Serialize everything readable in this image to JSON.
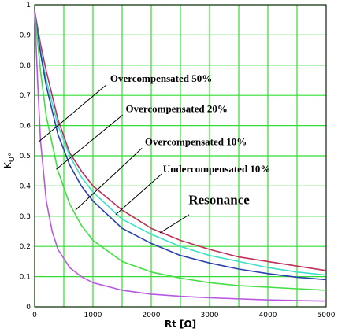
{
  "chart_data": {
    "type": "line",
    "title": "",
    "xlabel": "Rt [Ω]",
    "ylabel": "K",
    "ylabel_sub": "U°",
    "xlim": [
      0,
      5000
    ],
    "ylim": [
      0,
      1
    ],
    "grid": true,
    "x_ticks": [
      "0",
      "1000",
      "2000",
      "3000",
      "4000",
      "5000"
    ],
    "y_ticks": [
      "0",
      "0.1",
      "0.2",
      "0.3",
      "0.4",
      "0.5",
      "0.6",
      "0.7",
      "0.8",
      "0.9",
      "1"
    ],
    "colors": {
      "grid": "#33dd33",
      "axes": "#000000"
    },
    "series": [
      {
        "name": "Resonance",
        "color": "#c0305a",
        "x": [
          0,
          100,
          200,
          400,
          600,
          800,
          1000,
          1500,
          2000,
          2500,
          3000,
          3500,
          4000,
          4500,
          5000
        ],
        "y": [
          0.98,
          0.87,
          0.78,
          0.62,
          0.51,
          0.45,
          0.4,
          0.32,
          0.26,
          0.22,
          0.19,
          0.165,
          0.15,
          0.135,
          0.12
        ]
      },
      {
        "name": "Undercompensated 10%",
        "color": "#3de0c8",
        "x": [
          0,
          100,
          200,
          400,
          600,
          800,
          1000,
          1500,
          2000,
          2500,
          3000,
          3500,
          4000,
          4500,
          5000
        ],
        "y": [
          0.98,
          0.85,
          0.75,
          0.6,
          0.5,
          0.43,
          0.38,
          0.29,
          0.24,
          0.2,
          0.17,
          0.15,
          0.13,
          0.115,
          0.105
        ]
      },
      {
        "name": "Overcompensated 10%",
        "color": "#2a3fb0",
        "x": [
          0,
          100,
          200,
          400,
          600,
          800,
          1000,
          1500,
          2000,
          2500,
          3000,
          3500,
          4000,
          4500,
          5000
        ],
        "y": [
          0.98,
          0.84,
          0.73,
          0.57,
          0.47,
          0.4,
          0.35,
          0.26,
          0.21,
          0.17,
          0.145,
          0.125,
          0.11,
          0.098,
          0.09
        ]
      },
      {
        "name": "Overcompensated 20%",
        "color": "#44dd44",
        "x": [
          0,
          100,
          200,
          400,
          600,
          800,
          1000,
          1500,
          2000,
          2500,
          3000,
          3500,
          4000,
          4500,
          5000
        ],
        "y": [
          0.98,
          0.78,
          0.63,
          0.45,
          0.34,
          0.27,
          0.22,
          0.15,
          0.115,
          0.095,
          0.08,
          0.07,
          0.065,
          0.06,
          0.055
        ]
      },
      {
        "name": "Overcompensated 50%",
        "color": "#b858e0",
        "x": [
          0,
          50,
          100,
          200,
          300,
          400,
          600,
          800,
          1000,
          1500,
          2000,
          2500,
          3000,
          4000,
          5000
        ],
        "y": [
          0.98,
          0.75,
          0.55,
          0.35,
          0.25,
          0.19,
          0.13,
          0.1,
          0.08,
          0.055,
          0.042,
          0.035,
          0.03,
          0.023,
          0.019
        ]
      }
    ],
    "annotations": [
      {
        "text": "Overcompensated 50%",
        "size": 13,
        "tx": 1295,
        "ty": 0.745,
        "ax": 60,
        "ay": 0.545,
        "lx": 1230,
        "ly": 0.735
      },
      {
        "text": "Overcompensated 20%",
        "size": 13,
        "tx": 1560,
        "ty": 0.645,
        "ax": 370,
        "ay": 0.455,
        "lx": 1510,
        "ly": 0.635
      },
      {
        "text": "Overcompensated 10%",
        "size": 13,
        "tx": 1890,
        "ty": 0.535,
        "ax": 700,
        "ay": 0.32,
        "lx": 1840,
        "ly": 0.525
      },
      {
        "text": "Undercompensated 10%",
        "size": 13,
        "tx": 2200,
        "ty": 0.445,
        "ax": 1390,
        "ay": 0.305,
        "lx": 2180,
        "ly": 0.44
      },
      {
        "text": "Resonance",
        "size": 17,
        "tx": 2640,
        "ty": 0.34,
        "ax": 2150,
        "ay": 0.245,
        "lx": 2650,
        "ly": 0.305
      }
    ]
  }
}
